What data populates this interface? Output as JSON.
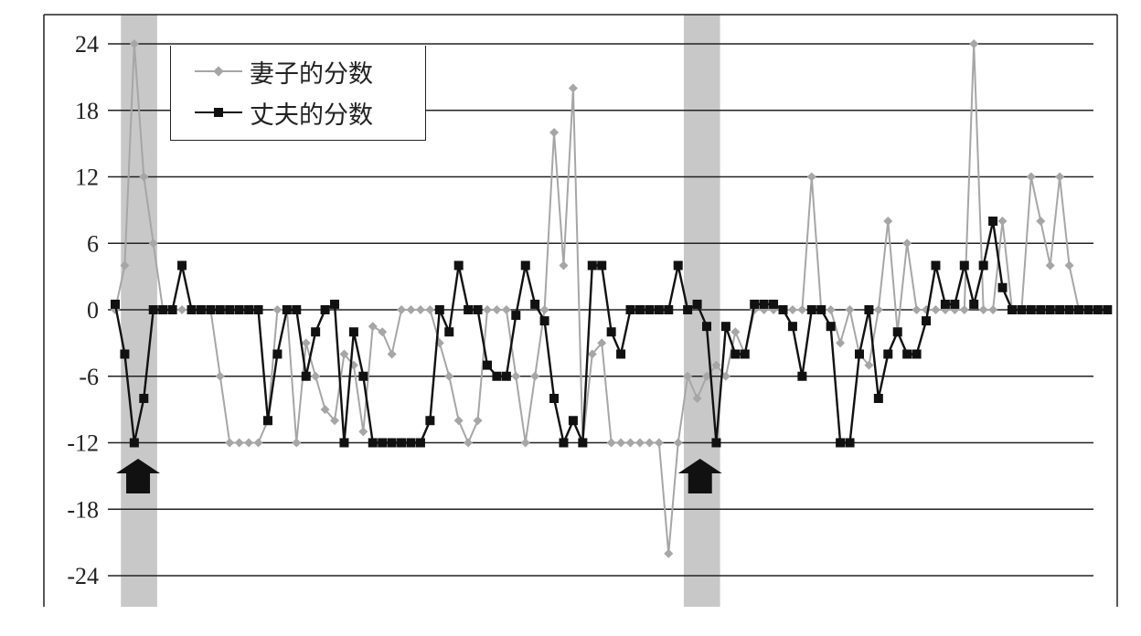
{
  "chart_data": {
    "type": "line",
    "title": "",
    "xlabel": "",
    "ylabel": "",
    "ylim": [
      -24,
      24
    ],
    "yticks": [
      24,
      18,
      12,
      6,
      0,
      -6,
      -12,
      -18,
      -24
    ],
    "grid": "horizontal",
    "legend_position": "top-left",
    "highlight_bands": [
      {
        "x": [
          0.6,
          4.4
        ],
        "arrow_at": 2.4
      },
      {
        "x": [
          59.6,
          63.4
        ],
        "arrow_at": 61.3
      }
    ],
    "colors": {
      "wife": "#a6a6a6",
      "husband": "#111111",
      "band": "#c8c8c8",
      "grid": "#222222"
    },
    "series": [
      {
        "name": "妻子的分数",
        "marker": "diamond",
        "values": [
          0,
          4,
          24,
          12,
          6,
          0,
          0,
          0,
          0,
          0,
          0,
          -6,
          -12,
          -12,
          -12,
          -12,
          -10,
          0,
          0,
          -12,
          -3,
          -6,
          -9,
          -10,
          -4,
          -5,
          -11,
          -1.5,
          -2,
          -4,
          0,
          0,
          0,
          0,
          -3,
          -6,
          -10,
          -12,
          -10,
          0,
          0,
          0,
          -6,
          -12,
          -6,
          0,
          16,
          4,
          20,
          -12,
          -4,
          -3,
          -12,
          -12,
          -12,
          -12,
          -12,
          -12,
          -22,
          -12,
          -6,
          -8,
          -6,
          -5,
          -6,
          -2,
          -4,
          0,
          0,
          0,
          0,
          0,
          0,
          12,
          0,
          0,
          -3,
          0,
          -4,
          -5,
          0,
          8,
          -2,
          6,
          0,
          0,
          0,
          0,
          0,
          0,
          24,
          0,
          0,
          8,
          0,
          0,
          12,
          8,
          4,
          12,
          4,
          0
        ]
      },
      {
        "name": "丈夫的分数",
        "marker": "square",
        "values": [
          0.5,
          -4,
          -12,
          -8,
          0,
          0,
          0,
          4,
          0,
          0,
          0,
          0,
          0,
          0,
          0,
          0,
          -10,
          -4,
          0,
          0,
          -6,
          -2,
          0,
          0.5,
          -12,
          -2,
          -6,
          -12,
          -12,
          -12,
          -12,
          -12,
          -12,
          -10,
          0,
          -2,
          4,
          0,
          0,
          -5,
          -6,
          -6,
          -0.5,
          4,
          0.5,
          -1,
          -8,
          -12,
          -10,
          -12,
          4,
          4,
          -2,
          -4,
          0,
          0,
          0,
          0,
          0,
          4,
          0,
          0.5,
          -1.5,
          -12,
          -1.5,
          -4,
          -4,
          0.5,
          0.5,
          0.5,
          0,
          -1.5,
          -6,
          0,
          0,
          -1.5,
          -12,
          -12,
          -4,
          0,
          -8,
          -4,
          -2,
          -4,
          -4,
          -1,
          4,
          0.5,
          0.5,
          4,
          0.5,
          4,
          8,
          2,
          0,
          0,
          0,
          0,
          0,
          0,
          0,
          0,
          0,
          0,
          0
        ]
      }
    ]
  }
}
